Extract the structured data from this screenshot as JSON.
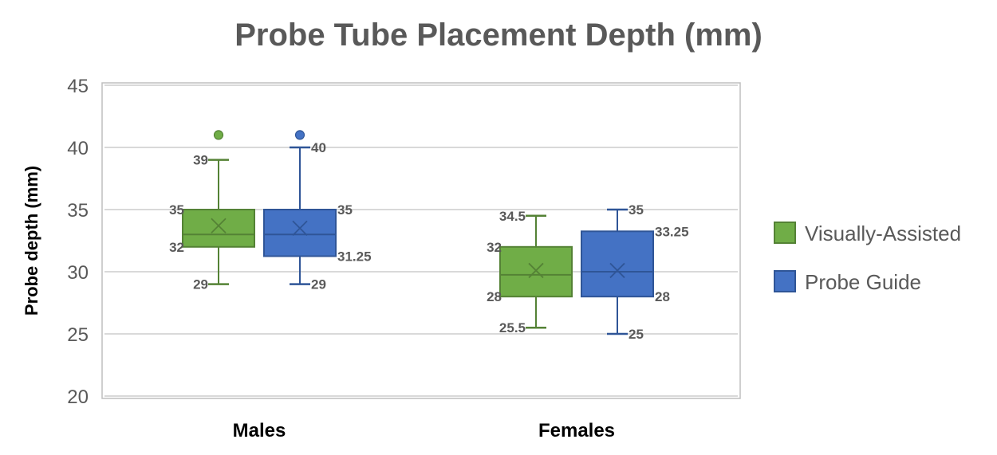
{
  "chart_data": {
    "type": "box",
    "title": "Probe Tube Placement Depth (mm)",
    "ylabel": "Probe depth (mm)",
    "xlabel": "",
    "ylim": [
      20,
      45
    ],
    "yticks": [
      20,
      25,
      30,
      35,
      40,
      45
    ],
    "grid": true,
    "legend_position": "right",
    "categories": [
      "Males",
      "Females"
    ],
    "series": [
      {
        "name": "Visually-Assisted",
        "color": "#70AD47",
        "border": "#548235",
        "boxes": [
          {
            "category": "Males",
            "min": 29,
            "q1": 32,
            "median": 33,
            "mean": 33.7,
            "q3": 35,
            "max": 39,
            "outliers": [
              41
            ],
            "labels": {
              "max": "39",
              "q3": "35",
              "q1": "32",
              "min": "29"
            }
          },
          {
            "category": "Females",
            "min": 25.5,
            "q1": 28,
            "median": 29.75,
            "mean": 30.1,
            "q3": 32,
            "max": 34.5,
            "outliers": [],
            "labels": {
              "max": "34.5",
              "q3": "32",
              "q1": "28",
              "min": "25.5"
            }
          }
        ]
      },
      {
        "name": "Probe Guide",
        "color": "#4472C4",
        "border": "#2F5597",
        "boxes": [
          {
            "category": "Males",
            "min": 29,
            "q1": 31.25,
            "median": 33,
            "mean": 33.5,
            "q3": 35,
            "max": 40,
            "outliers": [
              41
            ],
            "labels": {
              "max": "40",
              "q3": "35",
              "q1": "31.25",
              "min": "29"
            }
          },
          {
            "category": "Females",
            "min": 25,
            "q1": 28,
            "median": 30,
            "mean": 30.1,
            "q3": 33.25,
            "max": 35,
            "outliers": [],
            "labels": {
              "max": "35",
              "q3": "33.25",
              "q1": "28",
              "min": "25"
            }
          }
        ]
      }
    ]
  }
}
